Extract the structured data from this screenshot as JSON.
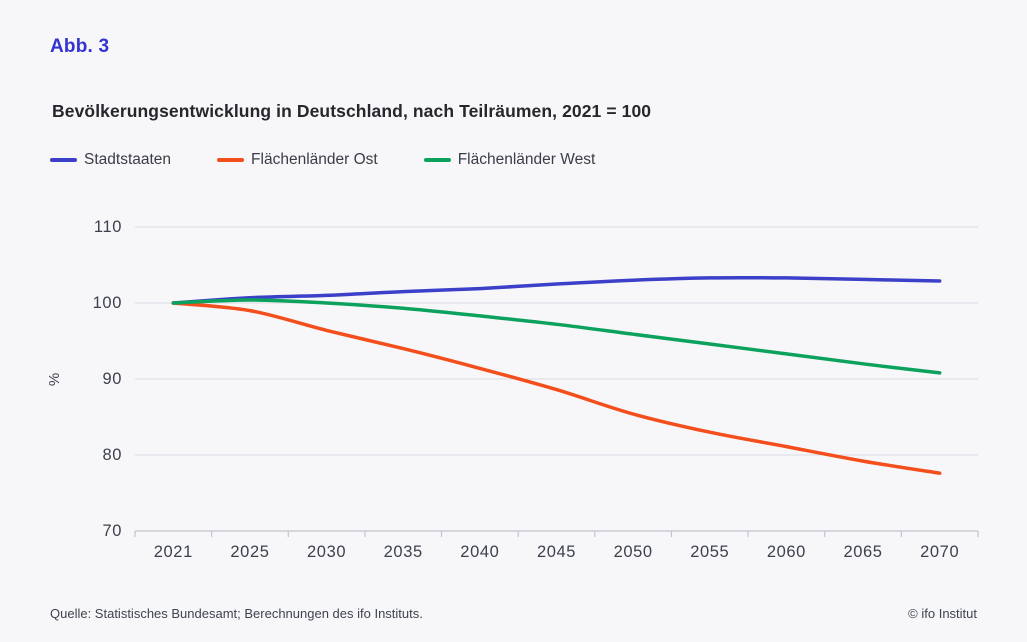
{
  "figure": {
    "label": "Abb. 3",
    "title": "Bevölkerungsentwicklung in Deutschland, nach Teilräumen, 2021 = 100"
  },
  "chart_data": {
    "type": "line",
    "x": [
      "2021",
      "2025",
      "2030",
      "2035",
      "2040",
      "2045",
      "2050",
      "2055",
      "2060",
      "2065",
      "2070"
    ],
    "series": [
      {
        "name": "Stadtstaaten",
        "color": "#3c40c8",
        "values": [
          100,
          100.7,
          101.0,
          101.5,
          101.9,
          102.5,
          103.0,
          103.3,
          103.3,
          103.1,
          102.9
        ]
      },
      {
        "name": "Flächenländer Ost",
        "color": "#f34e1b",
        "values": [
          100,
          99.0,
          96.4,
          94.0,
          91.4,
          88.6,
          85.4,
          83.0,
          81.1,
          79.2,
          77.6
        ]
      },
      {
        "name": "Flächenländer West",
        "color": "#0ca25d",
        "values": [
          100,
          100.4,
          100.0,
          99.3,
          98.3,
          97.2,
          95.9,
          94.6,
          93.3,
          92.0,
          90.8
        ]
      }
    ],
    "ylabel": "%",
    "xlabel": "",
    "yticks": [
      70,
      80,
      90,
      100,
      110
    ],
    "ylim": [
      70,
      110
    ],
    "grid": "horizontal",
    "legend_position": "top",
    "grid_color": "#dadbe3",
    "axis_color": "#c2c4cd"
  },
  "footer": {
    "source": "Quelle: Statistisches Bundesamt; Berechnungen des ifo Instituts.",
    "copyright": "© ifo Institut"
  }
}
